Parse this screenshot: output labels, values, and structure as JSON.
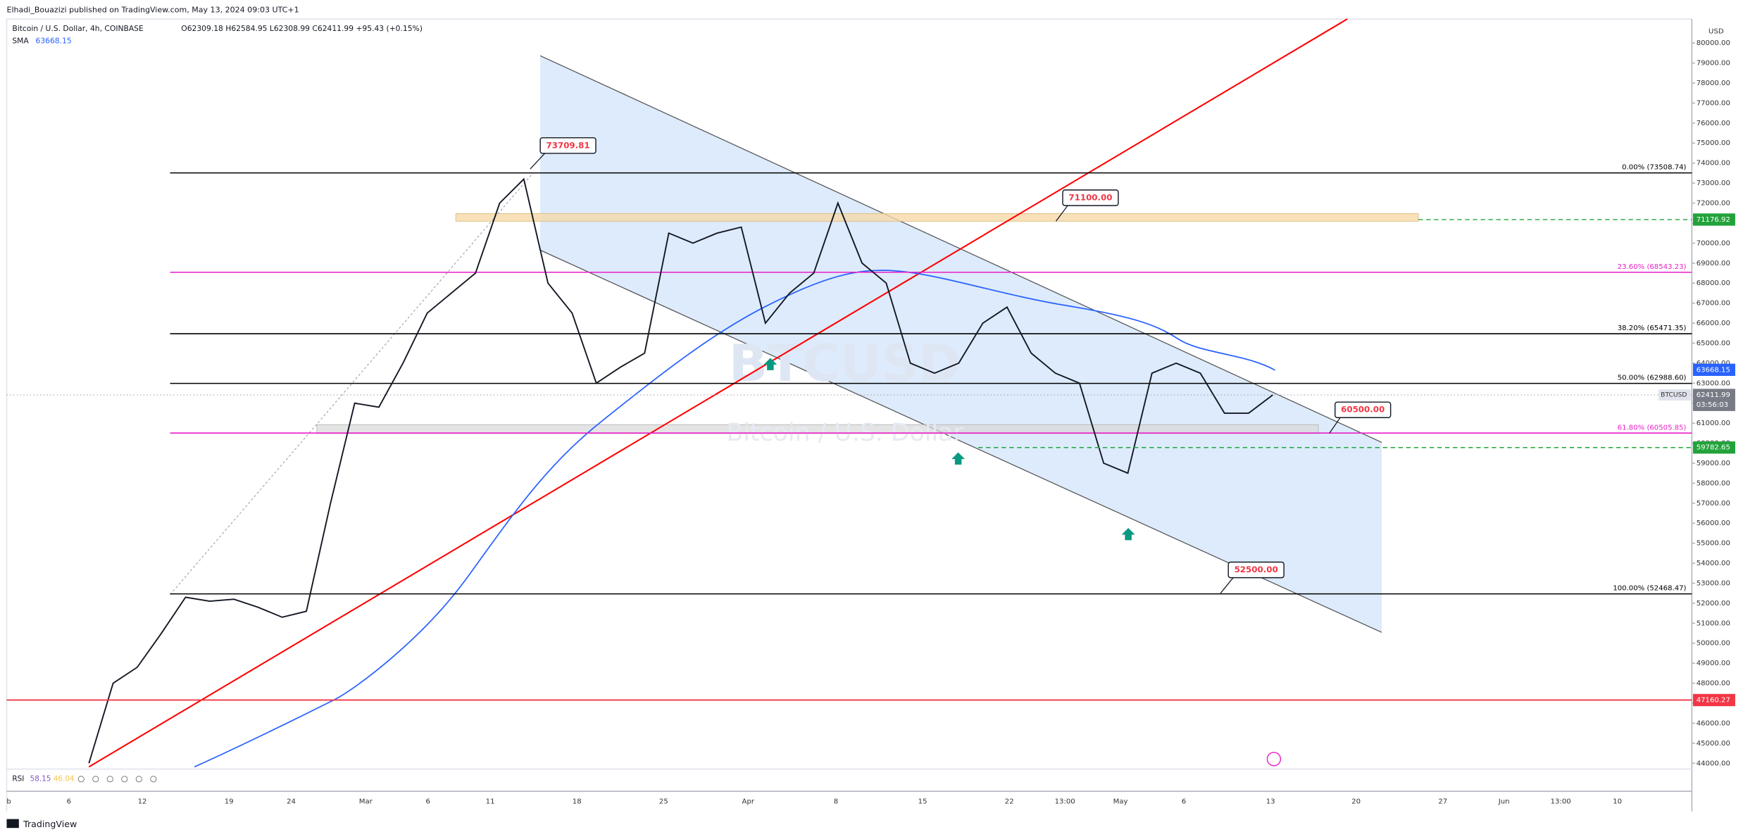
{
  "header": {
    "author_line": "Elhadi_Bouazizi published on TradingView.com, May 13, 2024 09:03 UTC+1",
    "symbol": "Bitcoin / U.S. Dollar, 4h, COINBASE",
    "ohlc": "O62309.18 H62584.95 L62308.99 C62411.99 +95.43 (+0.15%)",
    "sma_label": "SMA",
    "sma_value": "63668.15"
  },
  "currency": "USD",
  "watermark": {
    "symbol": "BTCUSD",
    "name": "Bitcoin / U.S. Dollar"
  },
  "price_axis": {
    "ylim": [
      42600,
      81200
    ],
    "yticks": [
      {
        "value": 44000,
        "label": "44000.00"
      },
      {
        "value": 45000,
        "label": "45000.00"
      },
      {
        "value": 46000,
        "label": "46000.00"
      },
      {
        "value": 47000,
        "label": "47000.00"
      },
      {
        "value": 48000,
        "label": "48000.00"
      },
      {
        "value": 49000,
        "label": "49000.00"
      },
      {
        "value": 50000,
        "label": "50000.00"
      },
      {
        "value": 51000,
        "label": "51000.00"
      },
      {
        "value": 52000,
        "label": "52000.00"
      },
      {
        "value": 53000,
        "label": "53000.00"
      },
      {
        "value": 54000,
        "label": "54000.00"
      },
      {
        "value": 55000,
        "label": "55000.00"
      },
      {
        "value": 56000,
        "label": "56000.00"
      },
      {
        "value": 57000,
        "label": "57000.00"
      },
      {
        "value": 58000,
        "label": "58000.00"
      },
      {
        "value": 59000,
        "label": "59000.00"
      },
      {
        "value": 60000,
        "label": "60000.00"
      },
      {
        "value": 61000,
        "label": "61000.00"
      },
      {
        "value": 62000,
        "label": "62000.00"
      },
      {
        "value": 63000,
        "label": "63000.00"
      },
      {
        "value": 64000,
        "label": "64000.00"
      },
      {
        "value": 65000,
        "label": "65000.00"
      },
      {
        "value": 66000,
        "label": "66000.00"
      },
      {
        "value": 67000,
        "label": "67000.00"
      },
      {
        "value": 68000,
        "label": "68000.00"
      },
      {
        "value": 69000,
        "label": "69000.00"
      },
      {
        "value": 70000,
        "label": "70000.00"
      },
      {
        "value": 71000,
        "label": "71000.00"
      },
      {
        "value": 72000,
        "label": "72000.00"
      },
      {
        "value": 73000,
        "label": "73000.00"
      },
      {
        "value": 74000,
        "label": "74000.00"
      },
      {
        "value": 75000,
        "label": "75000.00"
      },
      {
        "value": 76000,
        "label": "76000.00"
      },
      {
        "value": 77000,
        "label": "77000.00"
      },
      {
        "value": 78000,
        "label": "78000.00"
      },
      {
        "value": 79000,
        "label": "79000.00"
      },
      {
        "value": 80000,
        "label": "80000.00"
      }
    ]
  },
  "time_axis": [
    "b",
    "6",
    "12",
    "19",
    "24",
    "Mar",
    "6",
    "11",
    "18",
    "25",
    "Apr",
    "8",
    "15",
    "22",
    "13:00",
    "May",
    "6",
    "13",
    "20",
    "27",
    "Jun",
    "13:00",
    "10"
  ],
  "price_path": [
    44000,
    48000,
    48800,
    50500,
    52300,
    52100,
    52200,
    51800,
    51300,
    51600,
    57000,
    62000,
    61800,
    64000,
    66500,
    67500,
    68500,
    72000,
    73200,
    68000,
    66500,
    63000,
    63800,
    64500,
    70500,
    70000,
    70500,
    70800,
    66000,
    67500,
    68500,
    72000,
    69000,
    68000,
    64000,
    63500,
    64000,
    66000,
    66800,
    64500,
    63500,
    63000,
    59000,
    58500,
    63500,
    64000,
    63500,
    61500,
    61500,
    62411.99
  ],
  "fib_levels": [
    {
      "label": "0.00% (73508.74)",
      "value": 73508.74,
      "color": "#000000"
    },
    {
      "label": "23.60% (68543.23)",
      "value": 68543.23,
      "color": "#e91ec8"
    },
    {
      "label": "38.20% (65471.35)",
      "value": 65471.35,
      "color": "#000000"
    },
    {
      "label": "50.00% (62988.60)",
      "value": 62988.6,
      "color": "#000000"
    },
    {
      "label": "61.80% (60505.85)",
      "value": 60505.85,
      "color": "#e91ec8"
    },
    {
      "label": "100.00% (52468.47)",
      "value": 52468.47,
      "color": "#000000"
    }
  ],
  "levels": [
    {
      "value": 71176.92,
      "color": "#22a33a",
      "style": "dashed"
    },
    {
      "value": 59782.65,
      "color": "#22a33a",
      "style": "dashed"
    },
    {
      "value": 47160.27,
      "color": "#f23645",
      "style": "solid"
    }
  ],
  "sma_tag": {
    "value": 63668.15,
    "color": "#2962ff"
  },
  "current": {
    "symbol": "BTCUSD",
    "value": 62411.99,
    "countdown": "03:56:03"
  },
  "callouts": [
    {
      "value": 73709.81
    },
    {
      "value": 71100,
      "label": "71100.00"
    },
    {
      "value": 60500,
      "label": "60500.00"
    },
    {
      "value": 52500,
      "label": "52500.00"
    }
  ],
  "rsi": {
    "label": "RSI",
    "value": "58.15",
    "ma": "46.04"
  },
  "footer": "TradingView"
}
